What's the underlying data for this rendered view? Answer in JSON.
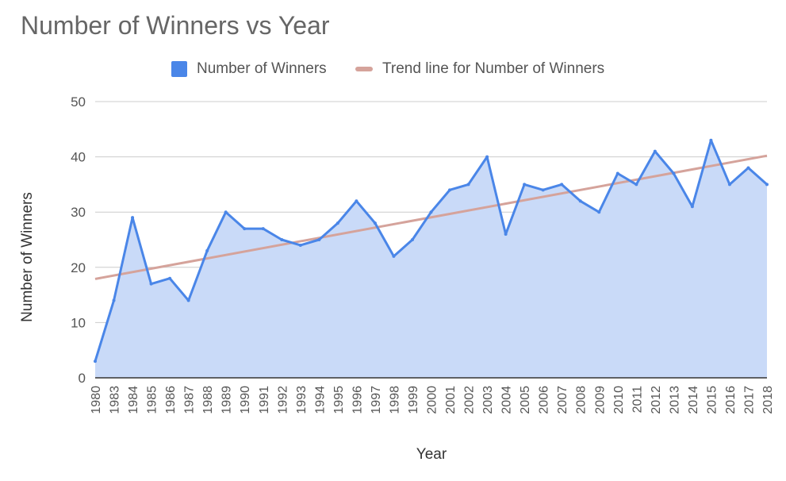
{
  "chart_data": {
    "type": "area",
    "title": "Number of Winners vs Year",
    "xlabel": "Year",
    "ylabel": "Number of Winners",
    "ylim": [
      0,
      50
    ],
    "yticks": [
      "0",
      "10",
      "20",
      "30",
      "40",
      "50"
    ],
    "grid": true,
    "legend_position": "top",
    "categories": [
      "1980",
      "1983",
      "1984",
      "1985",
      "1986",
      "1987",
      "1988",
      "1989",
      "1990",
      "1991",
      "1992",
      "1993",
      "1994",
      "1995",
      "1996",
      "1997",
      "1998",
      "1999",
      "2000",
      "2001",
      "2002",
      "2003",
      "2004",
      "2005",
      "2006",
      "2007",
      "2008",
      "2009",
      "2010",
      "2011",
      "2012",
      "2013",
      "2014",
      "2015",
      "2016",
      "2017",
      "2018"
    ],
    "series": [
      {
        "name": "Number of Winners",
        "color": "#4a86e8",
        "fill": "#c9daf8",
        "values": [
          3,
          14,
          29,
          17,
          18,
          14,
          23,
          30,
          27,
          27,
          25,
          24,
          25,
          28,
          32,
          28,
          22,
          25,
          30,
          34,
          35,
          40,
          26,
          35,
          34,
          35,
          32,
          30,
          37,
          35,
          41,
          37,
          31,
          43,
          35,
          38,
          35
        ]
      }
    ],
    "trendline": {
      "name": "Trend line for Number of Winners",
      "color": "#d5a39b",
      "start": 17.9,
      "end": 40.2
    }
  }
}
